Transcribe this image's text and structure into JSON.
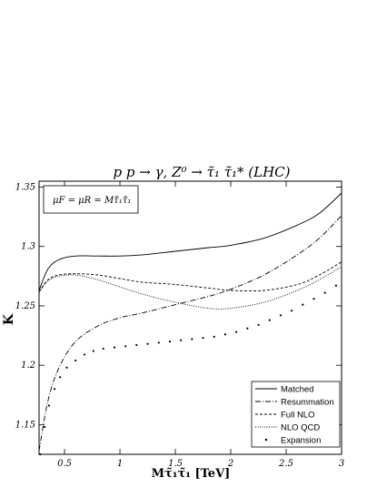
{
  "chart_data": {
    "type": "line",
    "title": "p p → γ, Z⁰ → τ̃₁ τ̃₁* (LHC)",
    "annotation": "μF = μR = Mτ̃₁τ̃₁",
    "xlabel": "Mτ̃₁τ̃₁ [TeV]",
    "ylabel": "K",
    "xlim": [
      0.27,
      3.0
    ],
    "ylim": [
      1.125,
      1.355
    ],
    "x_ticks": [
      {
        "v": 0.5,
        "label": "0.5"
      },
      {
        "v": 1.0,
        "label": "1"
      },
      {
        "v": 1.5,
        "label": "1.5"
      },
      {
        "v": 2.0,
        "label": "2"
      },
      {
        "v": 2.5,
        "label": "2.5"
      },
      {
        "v": 3.0,
        "label": "3"
      }
    ],
    "y_ticks": [
      {
        "v": 1.15,
        "label": "1.15"
      },
      {
        "v": 1.2,
        "label": "1.2"
      },
      {
        "v": 1.25,
        "label": "1.25"
      },
      {
        "v": 1.3,
        "label": "1.3"
      },
      {
        "v": 1.35,
        "label": "1.35"
      }
    ],
    "grid": false,
    "legend_position": "bottom-right",
    "series": [
      {
        "name": "Matched",
        "style": "solid",
        "x": [
          0.27,
          0.35,
          0.45,
          0.6,
          0.8,
          1.0,
          1.2,
          1.5,
          1.8,
          2.0,
          2.3,
          2.6,
          2.8,
          3.0
        ],
        "y": [
          1.263,
          1.281,
          1.289,
          1.292,
          1.292,
          1.292,
          1.293,
          1.296,
          1.299,
          1.301,
          1.307,
          1.318,
          1.328,
          1.345
        ]
      },
      {
        "name": "Resummation",
        "style": "dashdot",
        "x": [
          0.27,
          0.35,
          0.45,
          0.6,
          0.8,
          1.0,
          1.2,
          1.5,
          1.8,
          2.0,
          2.3,
          2.6,
          2.8,
          3.0
        ],
        "y": [
          1.128,
          1.17,
          1.198,
          1.22,
          1.233,
          1.24,
          1.244,
          1.251,
          1.258,
          1.264,
          1.276,
          1.293,
          1.307,
          1.326
        ]
      },
      {
        "name": "Full NLO",
        "style": "dashed",
        "x": [
          0.27,
          0.35,
          0.45,
          0.6,
          0.8,
          1.0,
          1.2,
          1.5,
          1.8,
          2.0,
          2.3,
          2.6,
          2.8,
          3.0
        ],
        "y": [
          1.262,
          1.272,
          1.276,
          1.277,
          1.276,
          1.273,
          1.27,
          1.268,
          1.265,
          1.263,
          1.263,
          1.268,
          1.276,
          1.287
        ]
      },
      {
        "name": "NLO QCD",
        "style": "dotted",
        "x": [
          0.27,
          0.35,
          0.45,
          0.6,
          0.8,
          1.0,
          1.2,
          1.5,
          1.8,
          2.0,
          2.3,
          2.6,
          2.8,
          3.0
        ],
        "y": [
          1.261,
          1.271,
          1.275,
          1.276,
          1.272,
          1.266,
          1.26,
          1.253,
          1.248,
          1.248,
          1.253,
          1.263,
          1.272,
          1.283
        ]
      },
      {
        "name": "Expansion",
        "style": "points",
        "x": [
          0.28,
          0.32,
          0.36,
          0.41,
          0.46,
          0.52,
          0.6,
          0.68,
          0.76,
          0.85,
          0.95,
          1.05,
          1.15,
          1.25,
          1.35,
          1.45,
          1.55,
          1.65,
          1.75,
          1.85,
          1.95,
          2.05,
          2.15,
          2.25,
          2.35,
          2.45,
          2.55,
          2.65,
          2.75,
          2.85,
          2.95
        ],
        "y": [
          1.125,
          1.148,
          1.166,
          1.18,
          1.19,
          1.198,
          1.204,
          1.209,
          1.212,
          1.214,
          1.215,
          1.216,
          1.217,
          1.218,
          1.219,
          1.22,
          1.221,
          1.222,
          1.223,
          1.224,
          1.226,
          1.228,
          1.231,
          1.234,
          1.238,
          1.242,
          1.246,
          1.251,
          1.256,
          1.261,
          1.267
        ]
      }
    ]
  }
}
